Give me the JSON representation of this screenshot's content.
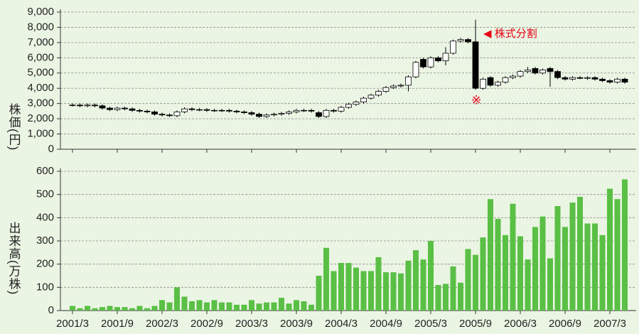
{
  "chart_data": [
    {
      "type": "candlestick",
      "ylabel": "株価(円)",
      "ylim": [
        0,
        9000
      ],
      "yticks": [
        0,
        {
          "value": 1000,
          "label": "1,000"
        },
        {
          "value": 2000,
          "label": "2,000"
        },
        {
          "value": 3000,
          "label": "3,000"
        },
        {
          "value": 4000,
          "label": "4,000"
        },
        {
          "value": 5000,
          "label": "5,000"
        },
        {
          "value": 6000,
          "label": "6,000"
        },
        {
          "value": 7000,
          "label": "7,000"
        },
        {
          "value": 8000,
          "label": "8,000"
        },
        {
          "value": 9000,
          "label": "9,000"
        }
      ],
      "grid": true,
      "up_color": "#ffffff",
      "down_color": "#000000",
      "open": [
        2900,
        2900,
        2850,
        2900,
        2850,
        2700,
        2600,
        2700,
        2650,
        2550,
        2500,
        2450,
        2300,
        2250,
        2200,
        2450,
        2650,
        2600,
        2600,
        2550,
        2550,
        2550,
        2500,
        2450,
        2400,
        2300,
        2150,
        2250,
        2300,
        2350,
        2450,
        2550,
        2550,
        2400,
        2150,
        2550,
        2500,
        2750,
        2950,
        3100,
        3350,
        3550,
        3800,
        4050,
        4150,
        4200,
        4750,
        5900,
        5400,
        6000,
        5800,
        6300,
        7100,
        7200,
        7050,
        4000,
        4700,
        4200,
        4400,
        4700,
        4800,
        5100,
        5300,
        5000,
        5300,
        5100,
        4700,
        4600,
        4700,
        4650,
        4700,
        4600,
        4500,
        4400,
        4600
      ],
      "high": [
        3000,
        3000,
        3000,
        3000,
        2950,
        2800,
        2800,
        2800,
        2750,
        2650,
        2600,
        2550,
        2400,
        2350,
        2550,
        2750,
        2750,
        2700,
        2700,
        2650,
        2650,
        2650,
        2600,
        2550,
        2500,
        2400,
        2350,
        2400,
        2450,
        2550,
        2650,
        2650,
        2650,
        2500,
        2650,
        2650,
        2850,
        3050,
        3200,
        3450,
        3650,
        3900,
        4150,
        4250,
        4300,
        4850,
        5800,
        6000,
        6100,
        6100,
        6700,
        7200,
        7300,
        7300,
        8500,
        4700,
        4800,
        4500,
        4800,
        4900,
        5200,
        5400,
        5400,
        5300,
        5400,
        5200,
        4800,
        4800,
        4800,
        4800,
        4800,
        4700,
        4600,
        4700,
        4700
      ],
      "low": [
        2800,
        2750,
        2750,
        2750,
        2600,
        2500,
        2500,
        2550,
        2450,
        2400,
        2350,
        2200,
        2150,
        2100,
        2100,
        2350,
        2500,
        2500,
        2450,
        2450,
        2450,
        2400,
        2350,
        2300,
        2200,
        2050,
        2050,
        2150,
        2200,
        2250,
        2350,
        2450,
        2400,
        2050,
        2050,
        2400,
        2400,
        2650,
        2850,
        3000,
        3250,
        3450,
        3700,
        3950,
        4050,
        3800,
        4650,
        5300,
        5300,
        5700,
        5500,
        6200,
        7000,
        6950,
        3900,
        3900,
        4100,
        4100,
        4300,
        4600,
        4700,
        5000,
        4900,
        4900,
        4100,
        4600,
        4500,
        4500,
        4600,
        4550,
        4500,
        4400,
        4300,
        4300,
        4300
      ],
      "close": [
        2900,
        2850,
        2900,
        2850,
        2700,
        2600,
        2700,
        2650,
        2550,
        2500,
        2450,
        2300,
        2250,
        2200,
        2450,
        2650,
        2600,
        2600,
        2550,
        2550,
        2550,
        2500,
        2450,
        2400,
        2300,
        2150,
        2250,
        2300,
        2350,
        2450,
        2550,
        2550,
        2500,
        2150,
        2550,
        2500,
        2750,
        2950,
        3100,
        3350,
        3550,
        3800,
        4050,
        4150,
        4200,
        4750,
        5700,
        5400,
        6000,
        5800,
        6300,
        7100,
        7200,
        7050,
        4000,
        4600,
        4200,
        4400,
        4700,
        4800,
        5100,
        5200,
        5000,
        5200,
        5100,
        4700,
        4600,
        4700,
        4650,
        4700,
        4600,
        4500,
        4400,
        4600,
        4400
      ],
      "annotations": [
        {
          "text": "◀ 株式分割",
          "color": "#e60012"
        },
        {
          "text": "※",
          "color": "#e60012"
        }
      ]
    },
    {
      "type": "bar",
      "ylabel": "出来高(万株)",
      "ylim": [
        0,
        600
      ],
      "yticks": [
        0,
        100,
        200,
        300,
        400,
        500,
        600
      ],
      "grid": true,
      "color": "#5abf45",
      "categories": [
        "2001/3",
        null,
        null,
        null,
        null,
        null,
        "2001/9",
        null,
        null,
        null,
        null,
        null,
        "2002/3",
        null,
        null,
        null,
        null,
        null,
        "2002/9",
        null,
        null,
        null,
        null,
        null,
        "2003/3",
        null,
        null,
        null,
        null,
        null,
        "2003/9",
        null,
        null,
        null,
        null,
        null,
        "2004/3",
        null,
        null,
        null,
        null,
        null,
        "2004/9",
        null,
        null,
        null,
        null,
        null,
        "2005/3",
        null,
        null,
        null,
        null,
        null,
        "2005/9",
        null,
        null,
        null,
        null,
        null,
        "2006/3",
        null,
        null,
        null,
        null,
        null,
        "2006/9",
        null,
        null,
        null,
        null,
        null,
        "2007/3",
        null,
        null
      ],
      "values": [
        20,
        10,
        20,
        10,
        15,
        20,
        15,
        15,
        10,
        20,
        10,
        20,
        45,
        35,
        100,
        60,
        40,
        45,
        35,
        45,
        35,
        35,
        25,
        25,
        45,
        30,
        35,
        35,
        55,
        30,
        45,
        40,
        25,
        150,
        270,
        170,
        205,
        205,
        185,
        170,
        170,
        230,
        165,
        165,
        160,
        215,
        260,
        220,
        300,
        110,
        115,
        190,
        120,
        265,
        240,
        315,
        480,
        395,
        325,
        460,
        320,
        220,
        360,
        405,
        225,
        450,
        360,
        465,
        490,
        375,
        375,
        325,
        525,
        480,
        565
      ]
    }
  ]
}
